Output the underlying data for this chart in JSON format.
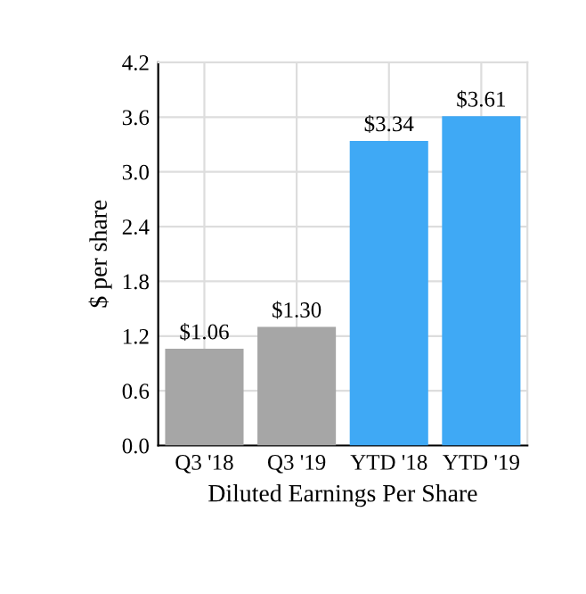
{
  "chart_data": {
    "type": "bar",
    "xlabel": "Diluted Earnings Per Share",
    "ylabel": "$ per share",
    "categories": [
      "Q3 '18",
      "Q3 '19",
      "YTD '18",
      "YTD '19"
    ],
    "values": [
      1.06,
      1.3,
      3.34,
      3.61
    ],
    "colors": [
      "#a6a6a6",
      "#a6a6a6",
      "#3fa9f5",
      "#3fa9f5"
    ],
    "value_labels": [
      "$1.06",
      "$1.30",
      "$3.34",
      "$3.61"
    ],
    "ylim": [
      0.0,
      4.2
    ],
    "yticks": [
      {
        "value": 0,
        "label": "0.0"
      },
      0.6,
      1.2,
      1.8,
      2.4,
      {
        "value": 3,
        "label": "3.0"
      },
      3.6,
      4.2
    ],
    "grid": true
  }
}
